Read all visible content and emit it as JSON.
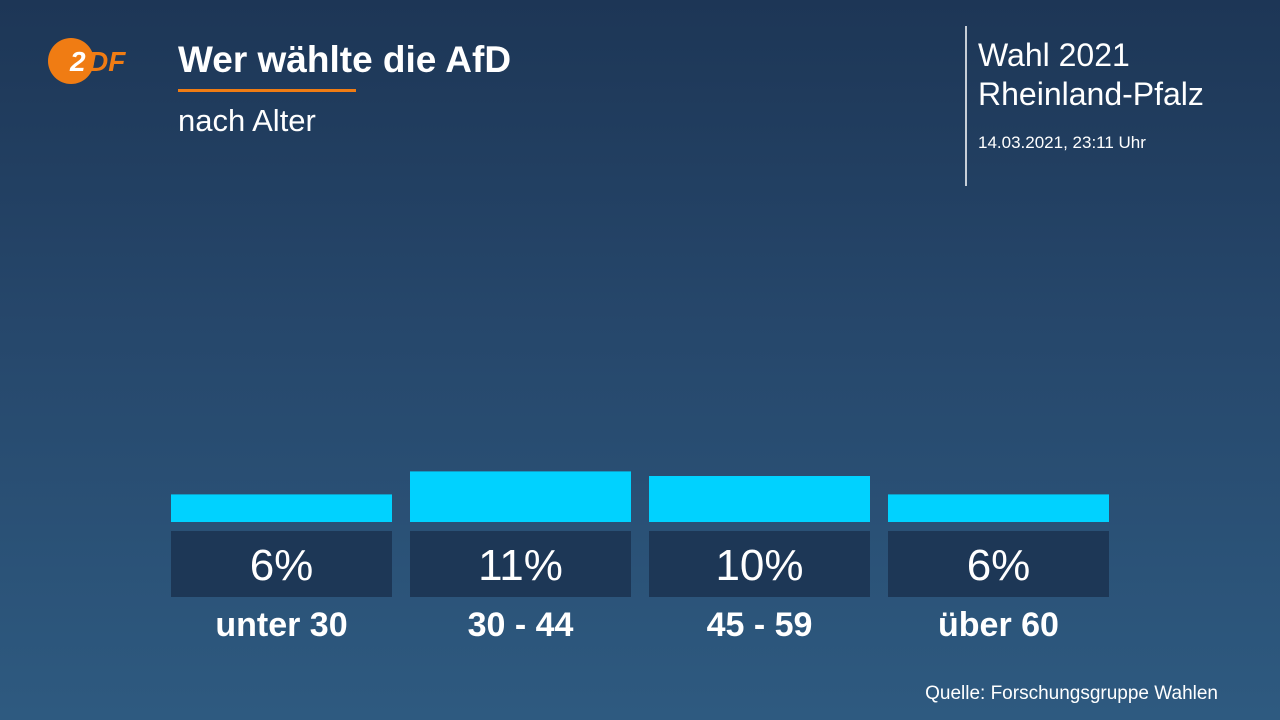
{
  "header": {
    "logo_text": "2DF",
    "title": "Wer wählte die AfD",
    "subtitle": "nach Alter"
  },
  "election": {
    "line1": "Wahl 2021",
    "line2": "Rheinland-Pfalz",
    "timestamp": "14.03.2021, 23:11 Uhr"
  },
  "footer": {
    "source": "Quelle: Forschungsgruppe Wahlen"
  },
  "colors": {
    "bar": "#00d2ff",
    "label_box": "#1d3756",
    "accent": "#f07c13",
    "logo": "#f07c13"
  },
  "chart_data": {
    "type": "bar",
    "categories": [
      "unter 30",
      "30 - 44",
      "45 - 59",
      "über 60"
    ],
    "values": [
      6,
      11,
      10,
      6
    ],
    "value_labels": [
      "6%",
      "11%",
      "10%",
      "6%"
    ],
    "unit": "%"
  }
}
